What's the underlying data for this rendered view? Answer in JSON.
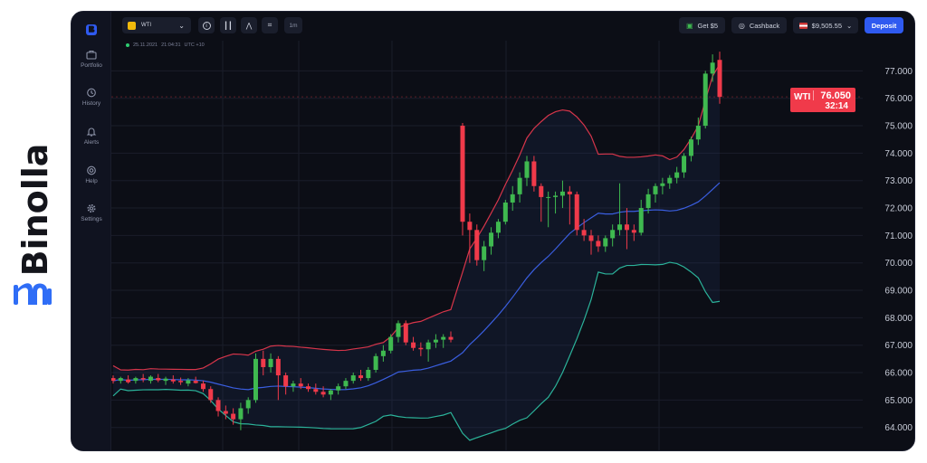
{
  "brand": {
    "name": "Binolla"
  },
  "sidebar": {
    "items": [
      {
        "label": "Portfolio",
        "icon": "briefcase-icon"
      },
      {
        "label": "History",
        "icon": "clock-icon"
      },
      {
        "label": "Alerts",
        "icon": "bell-icon"
      },
      {
        "label": "Help",
        "icon": "lifebuoy-icon"
      },
      {
        "label": "Settings",
        "icon": "gear-icon"
      }
    ]
  },
  "topbar": {
    "asset": "WTI",
    "timeframe": "1m",
    "bonus": "Get $5",
    "cashback": "Cashback",
    "balance": "$9,505.55",
    "deposit": "Deposit"
  },
  "chart_header": {
    "date": "25.11.2021",
    "time": "21:04:31",
    "timezone": "UTC +10"
  },
  "price_tag": {
    "symbol": "WTI",
    "price": "76.050",
    "timer": "32:14"
  },
  "colors": {
    "up": "#3fb950",
    "down": "#f03a4a",
    "upper_band": "#d6354a",
    "middle_band": "#3a5ee0",
    "lower_band": "#2bb39a",
    "accent": "#2f5af0"
  },
  "chart_data": {
    "type": "candlestick",
    "symbol": "WTI",
    "y_ticks": [
      "77.000",
      "76.000",
      "75.000",
      "74.000",
      "73.000",
      "72.000",
      "71.000",
      "70.000",
      "69.000",
      "68.000",
      "67.000",
      "66.000",
      "65.000",
      "64.000"
    ],
    "ylim": [
      63.1,
      78.1
    ],
    "candles": [
      [
        65.8,
        65.9,
        65.6,
        65.7
      ],
      [
        65.7,
        65.85,
        65.6,
        65.8
      ],
      [
        65.75,
        65.9,
        65.6,
        65.65
      ],
      [
        65.7,
        65.85,
        65.6,
        65.8
      ],
      [
        65.8,
        65.95,
        65.65,
        65.75
      ],
      [
        65.7,
        65.9,
        65.6,
        65.85
      ],
      [
        65.8,
        65.95,
        65.65,
        65.72
      ],
      [
        65.7,
        65.85,
        65.55,
        65.78
      ],
      [
        65.75,
        65.9,
        65.6,
        65.68
      ],
      [
        65.7,
        65.82,
        65.55,
        65.65
      ],
      [
        65.6,
        65.8,
        65.5,
        65.72
      ],
      [
        65.7,
        65.85,
        65.6,
        65.62
      ],
      [
        65.6,
        65.7,
        65.3,
        65.4
      ],
      [
        65.4,
        65.5,
        64.9,
        65.0
      ],
      [
        65.0,
        65.1,
        64.4,
        64.6
      ],
      [
        64.6,
        64.8,
        64.3,
        64.5
      ],
      [
        64.5,
        64.7,
        64.1,
        64.3
      ],
      [
        64.3,
        64.9,
        63.9,
        64.7
      ],
      [
        64.7,
        65.1,
        64.5,
        65.0
      ],
      [
        65.0,
        66.7,
        64.9,
        66.5
      ],
      [
        66.5,
        66.8,
        65.9,
        66.2
      ],
      [
        66.2,
        66.7,
        66.0,
        66.5
      ],
      [
        66.5,
        66.6,
        65.0,
        65.9
      ],
      [
        65.9,
        66.0,
        65.2,
        65.5
      ],
      [
        65.5,
        65.7,
        65.3,
        65.6
      ],
      [
        65.6,
        65.8,
        65.4,
        65.5
      ],
      [
        65.5,
        65.6,
        65.3,
        65.4
      ],
      [
        65.4,
        65.6,
        65.2,
        65.3
      ],
      [
        65.3,
        65.5,
        65.1,
        65.2
      ],
      [
        65.2,
        65.4,
        65.0,
        65.35
      ],
      [
        65.35,
        65.6,
        65.2,
        65.5
      ],
      [
        65.5,
        65.8,
        65.4,
        65.7
      ],
      [
        65.7,
        66.0,
        65.6,
        65.9
      ],
      [
        65.9,
        66.1,
        65.7,
        65.8
      ],
      [
        65.8,
        66.2,
        65.7,
        66.1
      ],
      [
        66.1,
        66.7,
        66.0,
        66.6
      ],
      [
        66.6,
        67.0,
        66.4,
        66.8
      ],
      [
        66.8,
        67.4,
        66.7,
        67.3
      ],
      [
        67.3,
        67.9,
        67.1,
        67.8
      ],
      [
        67.8,
        67.9,
        67.0,
        67.1
      ],
      [
        67.1,
        67.3,
        66.8,
        66.9
      ],
      [
        66.9,
        67.1,
        66.6,
        66.85
      ],
      [
        66.85,
        67.2,
        66.4,
        67.1
      ],
      [
        67.1,
        67.4,
        66.9,
        67.2
      ],
      [
        67.2,
        67.4,
        66.9,
        67.3
      ],
      [
        67.3,
        67.5,
        67.1,
        67.2
      ],
      [
        75.0,
        75.1,
        71.0,
        71.5
      ],
      [
        71.5,
        71.8,
        70.0,
        71.2
      ],
      [
        71.2,
        71.4,
        69.9,
        70.1
      ],
      [
        70.1,
        70.8,
        69.7,
        70.6
      ],
      [
        70.6,
        71.3,
        70.3,
        71.1
      ],
      [
        71.1,
        71.6,
        70.9,
        71.5
      ],
      [
        71.5,
        72.3,
        71.4,
        72.2
      ],
      [
        72.2,
        72.8,
        71.9,
        72.5
      ],
      [
        72.5,
        73.3,
        72.2,
        73.1
      ],
      [
        73.1,
        73.9,
        72.8,
        73.7
      ],
      [
        73.7,
        73.9,
        72.6,
        72.8
      ],
      [
        72.8,
        72.9,
        71.5,
        72.4
      ],
      [
        72.4,
        72.6,
        71.3,
        72.4
      ],
      [
        72.4,
        72.6,
        71.8,
        72.45
      ],
      [
        72.45,
        73.0,
        72.0,
        72.6
      ],
      [
        72.6,
        72.8,
        71.4,
        72.5
      ],
      [
        72.5,
        72.6,
        71.0,
        71.2
      ],
      [
        71.2,
        71.6,
        70.8,
        71.0
      ],
      [
        71.0,
        71.2,
        70.3,
        70.8
      ],
      [
        70.8,
        71.0,
        70.4,
        70.6
      ],
      [
        70.6,
        71.0,
        70.4,
        70.9
      ],
      [
        70.9,
        71.4,
        70.6,
        71.2
      ],
      [
        71.2,
        72.9,
        71.0,
        71.4
      ],
      [
        71.4,
        72.0,
        70.5,
        71.2
      ],
      [
        71.2,
        71.4,
        70.8,
        71.1
      ],
      [
        71.1,
        72.3,
        71.0,
        72.0
      ],
      [
        72.0,
        72.7,
        71.8,
        72.5
      ],
      [
        72.5,
        72.9,
        72.2,
        72.8
      ],
      [
        72.8,
        73.1,
        72.5,
        72.9
      ],
      [
        72.9,
        73.2,
        72.7,
        73.1
      ],
      [
        73.1,
        73.5,
        72.9,
        73.3
      ],
      [
        73.3,
        74.0,
        73.1,
        73.9
      ],
      [
        73.9,
        74.6,
        73.7,
        74.5
      ],
      [
        74.5,
        75.3,
        74.3,
        75.0
      ],
      [
        75.0,
        77.0,
        74.9,
        76.9
      ],
      [
        76.9,
        77.6,
        76.6,
        77.3
      ],
      [
        77.4,
        77.7,
        75.8,
        76.05
      ]
    ],
    "bands_note": "Bollinger bands (upper, middle, lower) overlaid"
  }
}
